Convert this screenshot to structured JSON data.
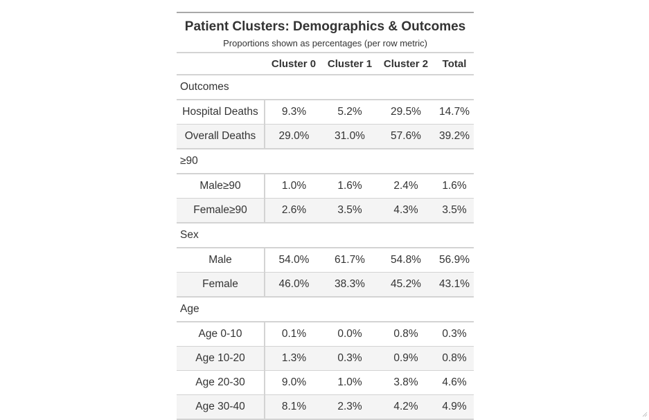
{
  "title": "Patient Clusters: Demographics & Outcomes",
  "subtitle": "Proportions shown as percentages (per row metric)",
  "columns": [
    "",
    "Cluster 0",
    "Cluster 1",
    "Cluster 2",
    "Total"
  ],
  "groups": [
    {
      "label": "Outcomes",
      "rows": [
        {
          "metric": "Hospital Deaths",
          "values": [
            "9.3%",
            "5.2%",
            "29.5%",
            "14.7%"
          ]
        },
        {
          "metric": "Overall Deaths",
          "values": [
            "29.0%",
            "31.0%",
            "57.6%",
            "39.2%"
          ]
        }
      ]
    },
    {
      "label": "≥90",
      "rows": [
        {
          "metric": "Male≥90",
          "values": [
            "1.0%",
            "1.6%",
            "2.4%",
            "1.6%"
          ]
        },
        {
          "metric": "Female≥90",
          "values": [
            "2.6%",
            "3.5%",
            "4.3%",
            "3.5%"
          ]
        }
      ]
    },
    {
      "label": "Sex",
      "rows": [
        {
          "metric": "Male",
          "values": [
            "54.0%",
            "61.7%",
            "54.8%",
            "56.9%"
          ]
        },
        {
          "metric": "Female",
          "values": [
            "46.0%",
            "38.3%",
            "45.2%",
            "43.1%"
          ]
        }
      ]
    },
    {
      "label": "Age",
      "rows": [
        {
          "metric": "Age 0-10",
          "values": [
            "0.1%",
            "0.0%",
            "0.8%",
            "0.3%"
          ]
        },
        {
          "metric": "Age 10-20",
          "values": [
            "1.3%",
            "0.3%",
            "0.9%",
            "0.8%"
          ]
        },
        {
          "metric": "Age 20-30",
          "values": [
            "9.0%",
            "1.0%",
            "3.8%",
            "4.6%"
          ]
        },
        {
          "metric": "Age 30-40",
          "values": [
            "8.1%",
            "2.3%",
            "4.2%",
            "4.9%"
          ]
        }
      ]
    }
  ]
}
